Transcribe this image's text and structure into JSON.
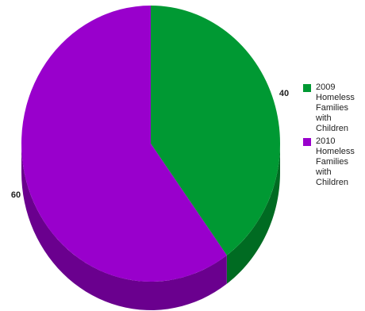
{
  "chart_data": {
    "type": "pie",
    "style": "3d",
    "categories": [
      "2009 Homeless Families with Children",
      "2010 Homeless Families with Children"
    ],
    "values": [
      40,
      60
    ],
    "labels": [
      "40",
      "60"
    ],
    "colors": [
      "#009933",
      "#9900cc"
    ],
    "side_colors": [
      "#006b22",
      "#6a008e"
    ],
    "legend_position": "right",
    "legend": [
      {
        "label": "2009 Homeless Families with Children",
        "color": "#009933"
      },
      {
        "label": "2010 Homeless Families with Children",
        "color": "#9900cc"
      }
    ]
  }
}
